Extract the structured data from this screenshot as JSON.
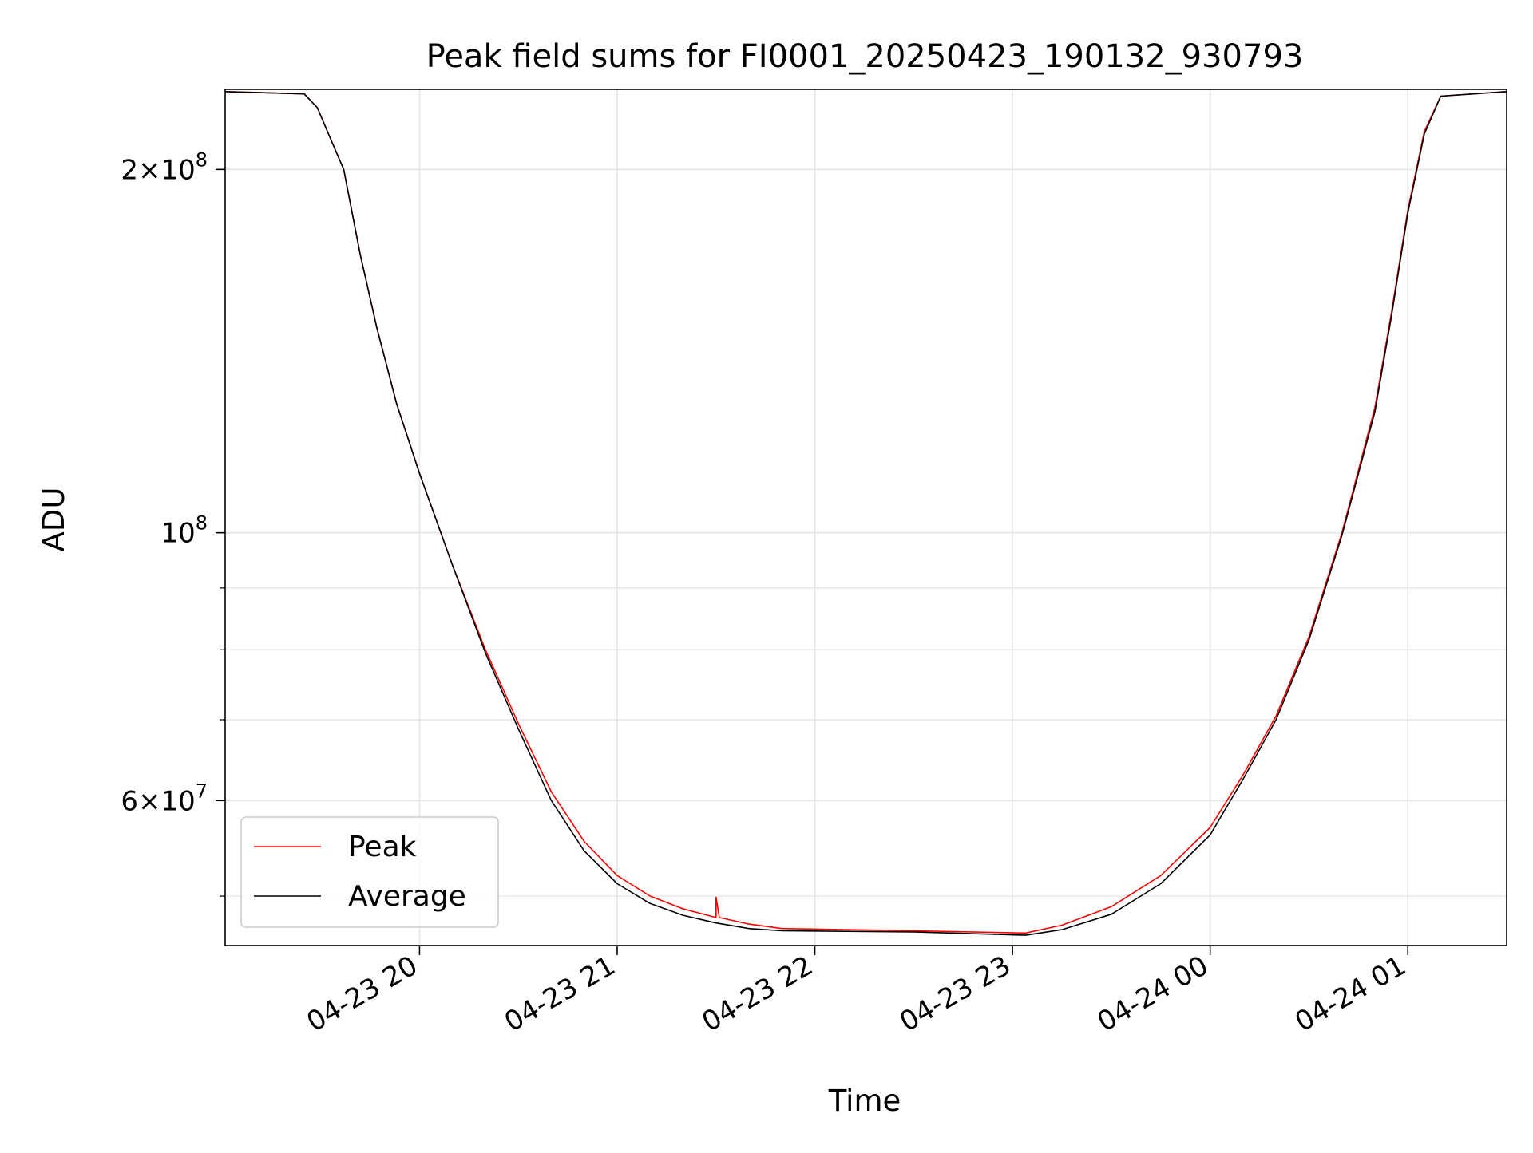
{
  "chart_data": {
    "type": "line",
    "title": "Peak field sums for FI0001_20250423_190132_930793",
    "xlabel": "Time",
    "ylabel": "ADU",
    "yscale": "log",
    "grid": true,
    "legend_position": "lower-left",
    "xlim": [
      "2025-04-23 19:01",
      "2025-04-24 01:30"
    ],
    "ylim": [
      45500000,
      233000000
    ],
    "x_ticks": [
      {
        "value": "2025-04-23 20:00",
        "label": "04-23 20"
      },
      {
        "value": "2025-04-23 21:00",
        "label": "04-23 21"
      },
      {
        "value": "2025-04-23 22:00",
        "label": "04-23 22"
      },
      {
        "value": "2025-04-23 23:00",
        "label": "04-23 23"
      },
      {
        "value": "2025-04-24 00:00",
        "label": "04-24 00"
      },
      {
        "value": "2025-04-24 01:00",
        "label": "04-24 01"
      }
    ],
    "y_ticks_major": [
      {
        "value": 60000000,
        "label_mantissa": "6",
        "label_base": "10",
        "label_exp": "7"
      },
      {
        "value": 100000000,
        "label_mantissa": "",
        "label_base": "10",
        "label_exp": "8"
      },
      {
        "value": 200000000,
        "label_mantissa": "2",
        "label_base": "10",
        "label_exp": "8"
      }
    ],
    "y_ticks_minor": [
      50000000,
      70000000,
      80000000,
      90000000
    ],
    "series": [
      {
        "name": "Peak",
        "color": "#ff0000",
        "points": [
          [
            "2025-04-23 19:01",
            232000000
          ],
          [
            "2025-04-23 19:25",
            231000000
          ],
          [
            "2025-04-23 19:29",
            225000000
          ],
          [
            "2025-04-23 19:33",
            212000000
          ],
          [
            "2025-04-23 19:37",
            200000000
          ],
          [
            "2025-04-23 19:42",
            170000000
          ],
          [
            "2025-04-23 19:47",
            148000000
          ],
          [
            "2025-04-23 19:53",
            128000000
          ],
          [
            "2025-04-23 20:00",
            112000000
          ],
          [
            "2025-04-23 20:10",
            94000000
          ],
          [
            "2025-04-23 20:20",
            80000000
          ],
          [
            "2025-04-23 20:30",
            69500000
          ],
          [
            "2025-04-23 20:40",
            61000000
          ],
          [
            "2025-04-23 20:50",
            55500000
          ],
          [
            "2025-04-23 21:00",
            52000000
          ],
          [
            "2025-04-23 21:10",
            50000000
          ],
          [
            "2025-04-23 21:20",
            48800000
          ],
          [
            "2025-04-23 21:30",
            48000000
          ],
          [
            "2025-04-23 21:30",
            49900000
          ],
          [
            "2025-04-23 21:31",
            48000000
          ],
          [
            "2025-04-23 21:40",
            47400000
          ],
          [
            "2025-04-23 21:50",
            47000000
          ],
          [
            "2025-04-23 22:30",
            46800000
          ],
          [
            "2025-04-23 23:04",
            46600000
          ],
          [
            "2025-04-23 23:15",
            47300000
          ],
          [
            "2025-04-23 23:30",
            49000000
          ],
          [
            "2025-04-23 23:45",
            52000000
          ],
          [
            "2025-04-24 00:00",
            57000000
          ],
          [
            "2025-04-24 00:10",
            63000000
          ],
          [
            "2025-04-24 00:20",
            70500000
          ],
          [
            "2025-04-24 00:30",
            82000000
          ],
          [
            "2025-04-24 00:40",
            100000000
          ],
          [
            "2025-04-24 00:50",
            127000000
          ],
          [
            "2025-04-24 00:55",
            152000000
          ],
          [
            "2025-04-24 01:00",
            185000000
          ],
          [
            "2025-04-24 01:05",
            215000000
          ],
          [
            "2025-04-24 01:10",
            230000000
          ],
          [
            "2025-04-24 01:30",
            232000000
          ]
        ]
      },
      {
        "name": "Average",
        "color": "#000000",
        "points": [
          [
            "2025-04-23 19:01",
            232000000
          ],
          [
            "2025-04-23 19:25",
            231000000
          ],
          [
            "2025-04-23 19:29",
            225000000
          ],
          [
            "2025-04-23 19:33",
            212000000
          ],
          [
            "2025-04-23 19:37",
            200000000
          ],
          [
            "2025-04-23 19:42",
            170000000
          ],
          [
            "2025-04-23 19:47",
            148000000
          ],
          [
            "2025-04-23 19:53",
            128000000
          ],
          [
            "2025-04-23 20:00",
            112000000
          ],
          [
            "2025-04-23 20:10",
            94000000
          ],
          [
            "2025-04-23 20:20",
            79500000
          ],
          [
            "2025-04-23 20:30",
            68800000
          ],
          [
            "2025-04-23 20:40",
            60000000
          ],
          [
            "2025-04-23 20:50",
            54500000
          ],
          [
            "2025-04-23 21:00",
            51200000
          ],
          [
            "2025-04-23 21:10",
            49300000
          ],
          [
            "2025-04-23 21:20",
            48200000
          ],
          [
            "2025-04-23 21:30",
            47500000
          ],
          [
            "2025-04-23 21:40",
            47000000
          ],
          [
            "2025-04-23 21:50",
            46800000
          ],
          [
            "2025-04-23 22:30",
            46700000
          ],
          [
            "2025-04-23 23:04",
            46400000
          ],
          [
            "2025-04-23 23:15",
            46900000
          ],
          [
            "2025-04-23 23:30",
            48300000
          ],
          [
            "2025-04-23 23:45",
            51200000
          ],
          [
            "2025-04-24 00:00",
            56200000
          ],
          [
            "2025-04-24 00:10",
            62500000
          ],
          [
            "2025-04-24 00:20",
            70000000
          ],
          [
            "2025-04-24 00:30",
            81500000
          ],
          [
            "2025-04-24 00:40",
            99500000
          ],
          [
            "2025-04-24 00:50",
            126000000
          ],
          [
            "2025-04-24 00:55",
            151000000
          ],
          [
            "2025-04-24 01:00",
            184000000
          ],
          [
            "2025-04-24 01:05",
            214000000
          ],
          [
            "2025-04-24 01:10",
            230000000
          ],
          [
            "2025-04-24 01:30",
            232000000
          ]
        ]
      }
    ]
  }
}
